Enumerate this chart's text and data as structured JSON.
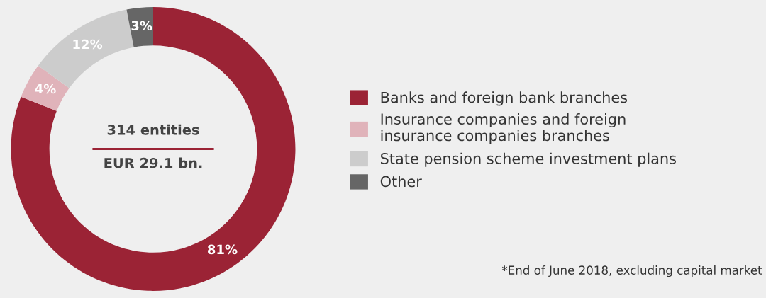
{
  "chart_data": {
    "type": "donut",
    "categories": [
      "Banks and foreign bank branches",
      "Insurance companies and foreign\ninsurance companies branches",
      "State pension scheme investment plans",
      "Other"
    ],
    "values": [
      81,
      4,
      12,
      3
    ],
    "colors": [
      "#9b2335",
      "#e0b3ba",
      "#cccccc",
      "#666666"
    ],
    "value_labels": [
      "81%",
      "4%",
      "12%",
      "3%"
    ],
    "legend": "right",
    "annotations": [
      "314 entities",
      "EUR 29.1 bn.",
      "*End of June 2018, excluding capital market"
    ]
  }
}
